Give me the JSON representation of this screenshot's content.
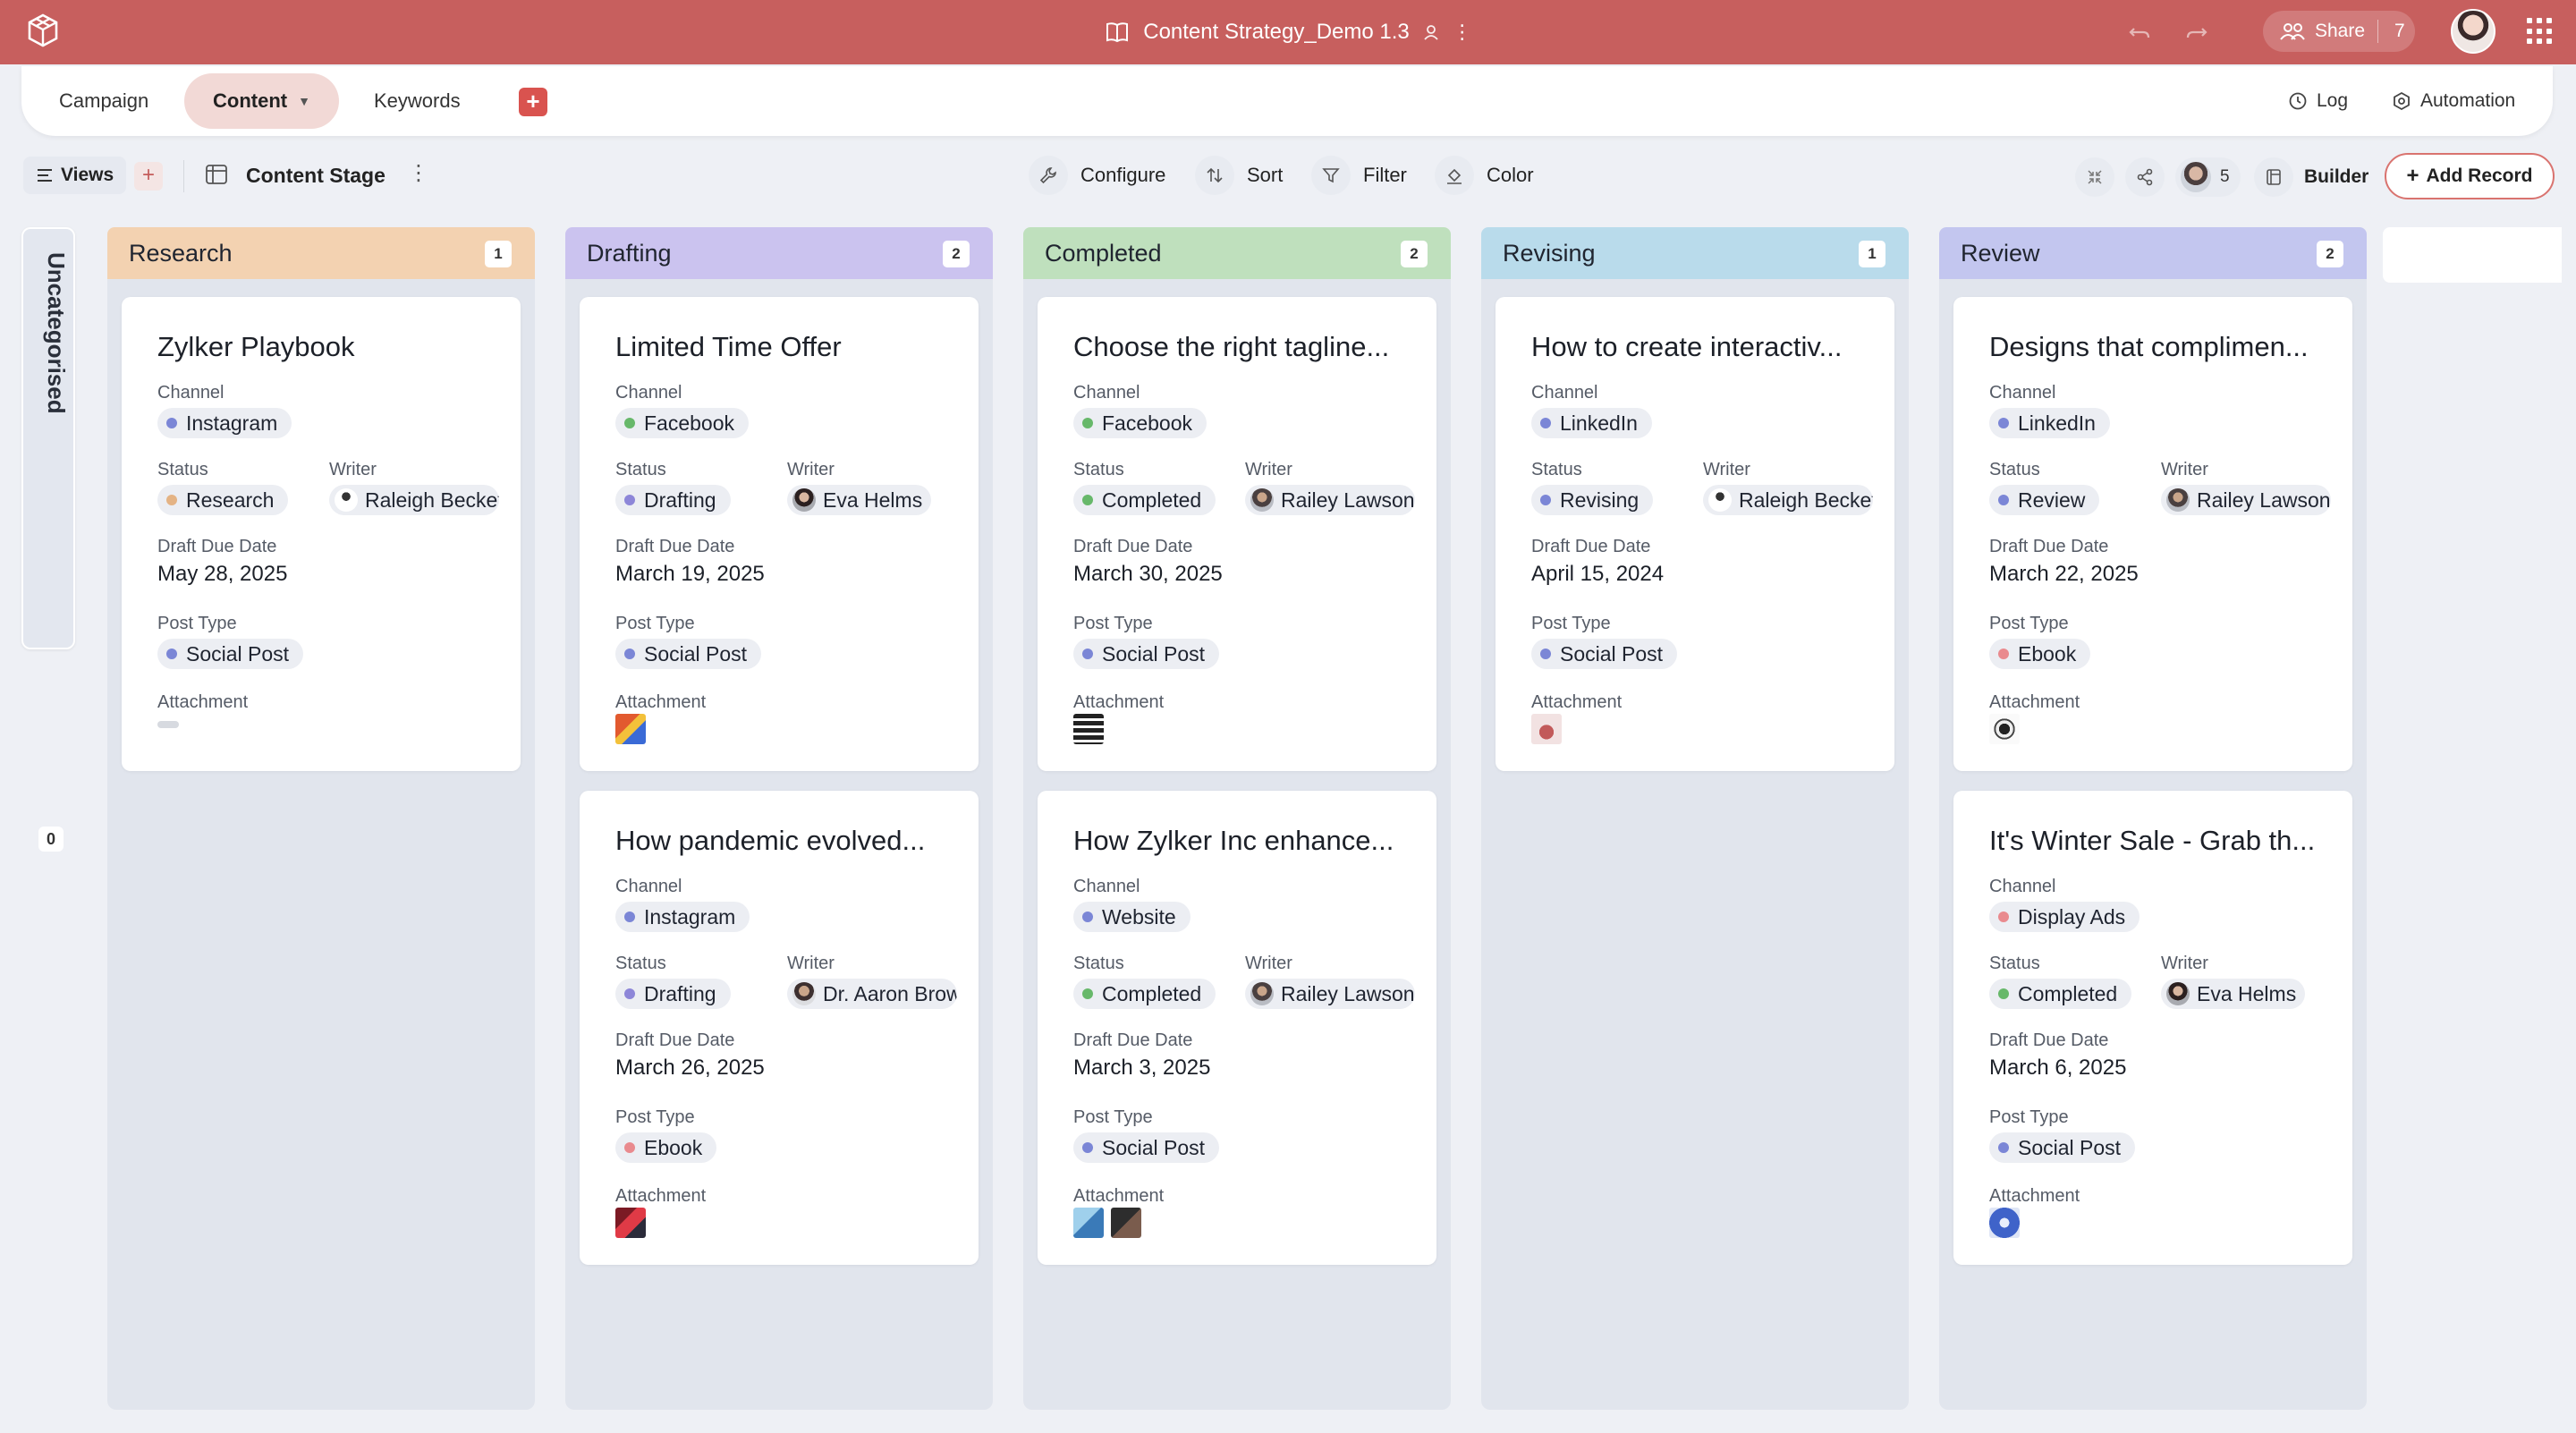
{
  "app": {
    "title": "Content Strategy_Demo 1.3",
    "share_label": "Share",
    "share_count": "7",
    "accent": "#c75f5e"
  },
  "tabs": [
    {
      "label": "Campaign"
    },
    {
      "label": "Content"
    },
    {
      "label": "Keywords"
    }
  ],
  "tab_actions": {
    "log": "Log",
    "automation": "Automation"
  },
  "toolbar": {
    "views": "Views",
    "stage": "Content Stage",
    "configure": "Configure",
    "sort": "Sort",
    "filter": "Filter",
    "color": "Color",
    "collaborators": "5",
    "builder": "Builder",
    "add_record": "Add Record"
  },
  "uncategorised": {
    "label": "Uncategorised",
    "count": "0"
  },
  "labels": {
    "channel": "Channel",
    "status": "Status",
    "writer": "Writer",
    "due": "Draft Due Date",
    "post_type": "Post Type",
    "attachment": "Attachment"
  },
  "columns": [
    {
      "name": "Research",
      "count": "1",
      "color": "#f3d2b1",
      "cards": [
        {
          "title": "Zylker Playbook",
          "channel": "Instagram",
          "status": "Research",
          "writer": "Raleigh Becket",
          "due": "May 28, 2025",
          "post_type": "Social Post"
        }
      ]
    },
    {
      "name": "Drafting",
      "count": "2",
      "color": "#cbc3ef",
      "cards": [
        {
          "title": "Limited Time Offer",
          "channel": "Facebook",
          "status": "Drafting",
          "writer": "Eva Helms",
          "due": "March 19, 2025",
          "post_type": "Social Post"
        },
        {
          "title": "How pandemic evolved...",
          "channel": "Instagram",
          "status": "Drafting",
          "writer": "Dr. Aaron Brow",
          "due": "March 26, 2025",
          "post_type": "Ebook"
        }
      ]
    },
    {
      "name": "Completed",
      "count": "2",
      "color": "#bfe0bd",
      "cards": [
        {
          "title": "Choose the right tagline...",
          "channel": "Facebook",
          "status": "Completed",
          "writer": "Railey Lawson",
          "due": "March 30, 2025",
          "post_type": "Social Post"
        },
        {
          "title": "How Zylker Inc enhance...",
          "channel": "Website",
          "status": "Completed",
          "writer": "Railey Lawson",
          "due": "March 3, 2025",
          "post_type": "Social Post"
        }
      ]
    },
    {
      "name": "Revising",
      "count": "1",
      "color": "#b9dbeb",
      "cards": [
        {
          "title": "How to create interactiv...",
          "channel": "LinkedIn",
          "status": "Revising",
          "writer": "Raleigh Becket",
          "due": "April 15, 2024",
          "post_type": "Social Post"
        }
      ]
    },
    {
      "name": "Review",
      "count": "2",
      "color": "#c3c6ef",
      "cards": [
        {
          "title": "Designs that complimen...",
          "channel": "LinkedIn",
          "status": "Review",
          "writer": "Railey Lawson",
          "due": "March 22, 2025",
          "post_type": "Ebook"
        },
        {
          "title": "It's Winter Sale - Grab th...",
          "channel": "Display Ads",
          "status": "Completed",
          "writer": "Eva Helms",
          "due": "March 6, 2025",
          "post_type": "Social Post"
        }
      ]
    }
  ]
}
